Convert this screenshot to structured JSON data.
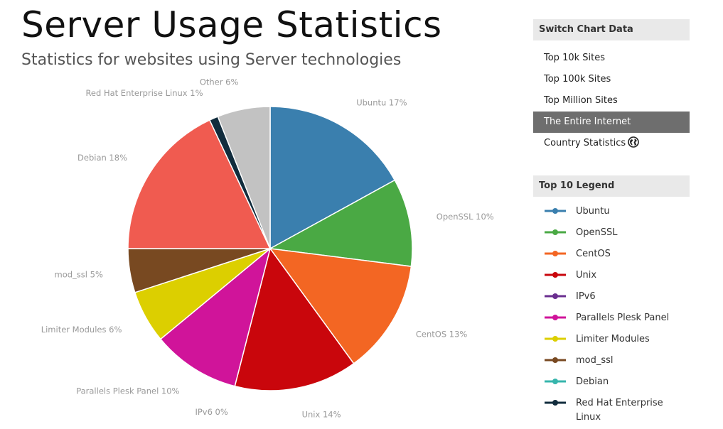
{
  "header": {
    "title": "Server Usage Statistics",
    "subtitle": "Statistics for websites using Server technologies"
  },
  "switch_panel": {
    "header": "Switch Chart Data",
    "items": [
      {
        "label": "Top 10k Sites",
        "active": false
      },
      {
        "label": "Top 100k Sites",
        "active": false
      },
      {
        "label": "Top Million Sites",
        "active": false
      },
      {
        "label": "The Entire Internet",
        "active": true
      },
      {
        "label": "Country Statistics",
        "active": false,
        "icon": "globe-icon"
      }
    ]
  },
  "legend_panel": {
    "header": "Top 10 Legend",
    "items": [
      {
        "label": "Ubuntu",
        "color": "#3a7fae"
      },
      {
        "label": "OpenSSL",
        "color": "#4aa944"
      },
      {
        "label": "CentOS",
        "color": "#f36623"
      },
      {
        "label": "Unix",
        "color": "#c9060c"
      },
      {
        "label": "IPv6",
        "color": "#6a2e8f"
      },
      {
        "label": "Parallels Plesk Panel",
        "color": "#d0149a"
      },
      {
        "label": "Limiter Modules",
        "color": "#dccf00"
      },
      {
        "label": "mod_ssl",
        "color": "#784921"
      },
      {
        "label": "Debian",
        "color": "#36b5ac"
      },
      {
        "label": "Red Hat Enterprise Linux",
        "color": "#112c3d"
      }
    ]
  },
  "chart_data": {
    "type": "pie",
    "start": "top",
    "direction": "clockwise",
    "slices": [
      {
        "label": "Ubuntu 17%",
        "value": 17,
        "color": "#3a7fae"
      },
      {
        "label": "OpenSSL 10%",
        "value": 10,
        "color": "#4aa944"
      },
      {
        "label": "CentOS 13%",
        "value": 13,
        "color": "#f36623"
      },
      {
        "label": "Unix 14%",
        "value": 14,
        "color": "#c9060c"
      },
      {
        "label": "IPv6 0%",
        "value": 0,
        "color": "#6a2e8f"
      },
      {
        "label": "Parallels Plesk Panel 10%",
        "value": 10,
        "color": "#d0149a"
      },
      {
        "label": "Limiter Modules 6%",
        "value": 6,
        "color": "#dccf00"
      },
      {
        "label": "mod_ssl 5%",
        "value": 5,
        "color": "#784921"
      },
      {
        "label": "Debian 18%",
        "value": 18,
        "color": "#f05b50"
      },
      {
        "label": "Red Hat Enterprise Linux 1%",
        "value": 1,
        "color": "#112c3d"
      },
      {
        "label": "Other 6%",
        "value": 6,
        "color": "#c2c2c2"
      }
    ]
  }
}
